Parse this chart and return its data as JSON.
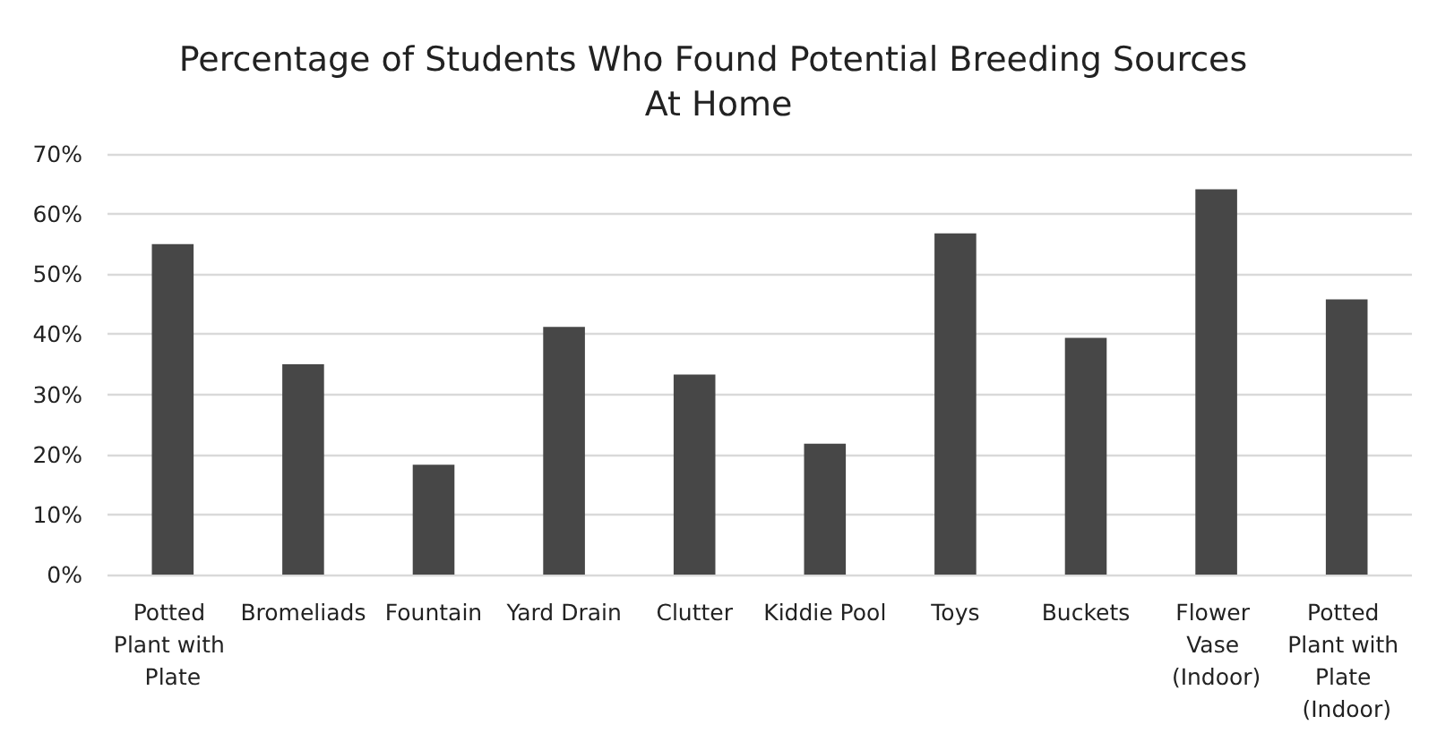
{
  "chart_data": {
    "type": "bar",
    "title": "Percentage of Students Who Found Potential Breeding Sources At Home",
    "categories": [
      "Potted Plant with Plate",
      "Bromeliads",
      "Fountain",
      "Yard Drain",
      "Clutter",
      "Kiddie Pool",
      "Toys",
      "Buckets",
      "Flower Vase (Indoor)",
      "Potted Plant with Plate (Indoor)"
    ],
    "values": [
      55,
      35,
      18.3,
      41.2,
      33.3,
      21.8,
      56.8,
      39.4,
      64.1,
      45.8
    ],
    "color": "#474747",
    "ylim": [
      0,
      70
    ],
    "yticks": [
      {
        "value": 0,
        "label": "0%"
      },
      {
        "value": 10,
        "label": "10%"
      },
      {
        "value": 20,
        "label": "20%"
      },
      {
        "value": 30,
        "label": "30%"
      },
      {
        "value": 40,
        "label": "40%"
      },
      {
        "value": 50,
        "label": "50%"
      },
      {
        "value": 60,
        "label": "60%"
      },
      {
        "value": 70,
        "label": "70%"
      }
    ],
    "grid": "y"
  }
}
